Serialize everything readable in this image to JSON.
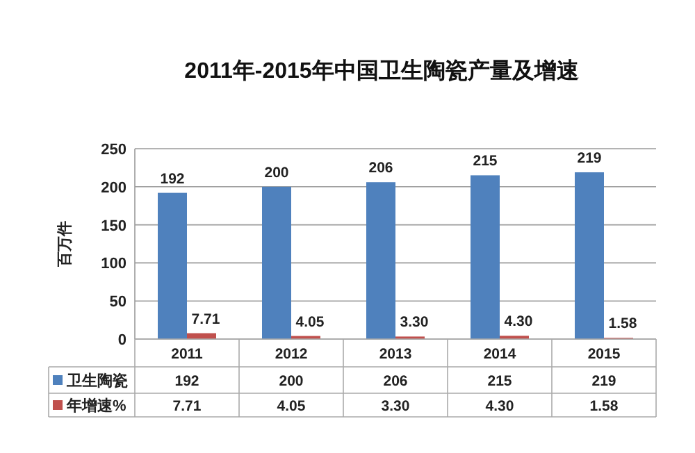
{
  "chart_data": {
    "type": "bar",
    "title": "2011年-2015年中国卫生陶瓷产量及增速",
    "ylabel": "百万件",
    "categories": [
      "2011",
      "2012",
      "2013",
      "2014",
      "2015"
    ],
    "series": [
      {
        "name": "卫生陶瓷",
        "color": "#4f81bd",
        "values": [
          192,
          200,
          206,
          215,
          219
        ],
        "value_labels": [
          "192",
          "200",
          "206",
          "215",
          "219"
        ]
      },
      {
        "name": "年增速%",
        "color": "#c0504d",
        "values": [
          7.71,
          4.05,
          3.3,
          4.3,
          1.58
        ],
        "value_labels": [
          "7.71",
          "4.05",
          "3.30",
          "4.30",
          "1.58"
        ]
      }
    ],
    "ylim": [
      0,
      250
    ],
    "yticks": [
      0,
      50,
      100,
      150,
      200,
      250
    ],
    "grid": "y",
    "data_labels": true,
    "legend": "bottom"
  }
}
